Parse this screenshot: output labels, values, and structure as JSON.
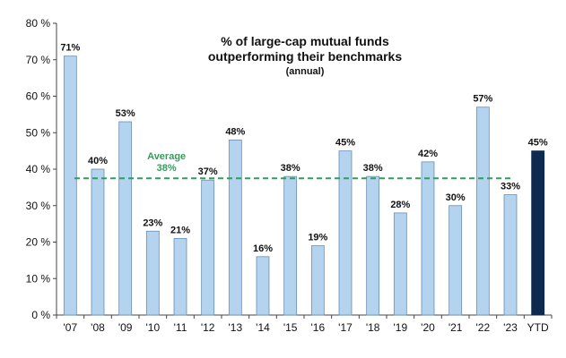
{
  "chart_data": {
    "type": "bar",
    "title": "% of large-cap mutual funds",
    "title_line2": "outperforming their benchmarks",
    "subtitle": "(annual)",
    "categories": [
      "'07",
      "'08",
      "'09",
      "'10",
      "'11",
      "'12",
      "'13",
      "'14",
      "'15",
      "'16",
      "'17",
      "'18",
      "'19",
      "'20",
      "'21",
      "'22",
      "'23",
      "YTD"
    ],
    "values": [
      71,
      40,
      53,
      23,
      21,
      37,
      48,
      16,
      38,
      19,
      45,
      38,
      28,
      42,
      30,
      57,
      33,
      45
    ],
    "data_labels": [
      "71%",
      "40%",
      "53%",
      "23%",
      "21%",
      "37%",
      "48%",
      "16%",
      "38%",
      "19%",
      "45%",
      "38%",
      "28%",
      "42%",
      "30%",
      "57%",
      "33%",
      "45%"
    ],
    "ylim": [
      0,
      80
    ],
    "yticks": [
      0,
      10,
      20,
      30,
      40,
      50,
      60,
      70,
      80
    ],
    "ytick_labels": [
      "0 %",
      "10 %",
      "20 %",
      "30 %",
      "40 %",
      "50 %",
      "60 %",
      "70 %",
      "80 %"
    ],
    "average": {
      "value": 37.5,
      "label": "Average",
      "value_label": "38%"
    },
    "xlabel": "",
    "ylabel": "",
    "grid": false,
    "legend": "none",
    "colors": {
      "bar": "#b3d3ef",
      "bar_edge": "#6b8db3",
      "highlight_bar": "#0e2a4f",
      "average_line": "#2e9e5b",
      "axis": "#444444"
    }
  }
}
